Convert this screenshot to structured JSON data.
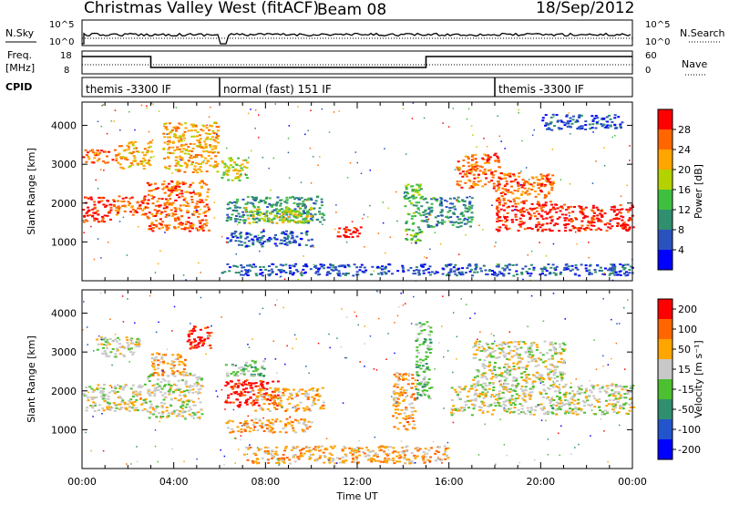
{
  "header": {
    "title": "Christmas Valley West (fitACF)",
    "beam": "Beam 08",
    "date": "18/Sep/2012"
  },
  "top_panels": {
    "nsky_label": "N.Sky",
    "nsky_ticks": [
      "10^5",
      "10^0"
    ],
    "nsearch_label": "N.Search",
    "nsearch_ticks": [
      "10^5",
      "10^0"
    ],
    "freq_label_1": "Freq.",
    "freq_label_2": "[MHz]",
    "freq_ticks": [
      "18",
      "8"
    ],
    "nave_label": "Nave",
    "nave_ticks": [
      "60",
      "0"
    ],
    "cpid_label": "CPID",
    "modes": [
      {
        "label": "themis -3300 IF",
        "start_h": 0,
        "end_h": 6
      },
      {
        "label": "normal (fast) 151 IF",
        "start_h": 6,
        "end_h": 18
      },
      {
        "label": "themis -3300 IF",
        "start_h": 18,
        "end_h": 24
      }
    ]
  },
  "x_axis": {
    "label": "Time UT",
    "ticks": [
      "00:00",
      "04:00",
      "08:00",
      "12:00",
      "16:00",
      "20:00",
      "00:00"
    ]
  },
  "power_panel": {
    "ylabel": "Slant Range [km]",
    "yticks": [
      "1000",
      "2000",
      "3000",
      "4000"
    ],
    "colorbar_label": "Power [dB]",
    "colorbar_ticks": [
      "4",
      "8",
      "12",
      "16",
      "20",
      "24",
      "28"
    ],
    "colors": [
      "#0000ff",
      "#2a52be",
      "#2f8f6f",
      "#3fbf3f",
      "#b4d200",
      "#ffa500",
      "#ff6600",
      "#ff0000"
    ]
  },
  "velocity_panel": {
    "ylabel": "Slant Range [km]",
    "yticks": [
      "1000",
      "2000",
      "3000",
      "4000"
    ],
    "colorbar_label": "Velocity [m s⁻¹]",
    "colorbar_ticks": [
      "200",
      "100",
      "50",
      "15",
      "-15",
      "-50",
      "-100",
      "-200"
    ],
    "colors": [
      "#0000ff",
      "#2255cc",
      "#2f8f6f",
      "#4cc030",
      "#c8c8c8",
      "#ffa500",
      "#ff6600",
      "#ff0000"
    ]
  },
  "chart_data": {
    "type": "heatmap",
    "x_range_hours": [
      0,
      24
    ],
    "y_range_km": [
      0,
      4600
    ],
    "power_bands": [
      {
        "t0": 0.0,
        "t1": 1.2,
        "r0": 1500,
        "r1": 2200,
        "level": 7
      },
      {
        "t0": 0.0,
        "t1": 1.5,
        "r0": 3050,
        "r1": 3400,
        "level": 6
      },
      {
        "t0": 1.2,
        "t1": 2.8,
        "r0": 1700,
        "r1": 2200,
        "level": 6
      },
      {
        "t0": 1.5,
        "t1": 3.0,
        "r0": 2900,
        "r1": 3600,
        "level": 5
      },
      {
        "t0": 2.8,
        "t1": 5.5,
        "r0": 1300,
        "r1": 2600,
        "level": 6
      },
      {
        "t0": 3.5,
        "t1": 5.9,
        "r0": 2800,
        "r1": 4100,
        "level": 5
      },
      {
        "t0": 6.0,
        "t1": 7.2,
        "r0": 2600,
        "r1": 3200,
        "level": 4
      },
      {
        "t0": 6.2,
        "t1": 10.5,
        "r0": 1500,
        "r1": 2200,
        "level": 2
      },
      {
        "t0": 7.0,
        "t1": 10.0,
        "r0": 1500,
        "r1": 1900,
        "level": 4
      },
      {
        "t0": 6.2,
        "t1": 10.0,
        "r0": 900,
        "r1": 1300,
        "level": 1
      },
      {
        "t0": 11.0,
        "t1": 12.2,
        "r0": 1100,
        "r1": 1400,
        "level": 7
      },
      {
        "t0": 14.0,
        "t1": 14.8,
        "r0": 1000,
        "r1": 2500,
        "level": 3
      },
      {
        "t0": 14.8,
        "t1": 17.0,
        "r0": 1400,
        "r1": 2200,
        "level": 2
      },
      {
        "t0": 16.3,
        "t1": 18.2,
        "r0": 2400,
        "r1": 3300,
        "level": 6
      },
      {
        "t0": 18.0,
        "t1": 24.0,
        "r0": 1300,
        "r1": 2000,
        "level": 7
      },
      {
        "t0": 18.0,
        "t1": 20.5,
        "r0": 2000,
        "r1": 2800,
        "level": 6
      },
      {
        "t0": 20.0,
        "t1": 23.5,
        "r0": 3900,
        "r1": 4300,
        "level": 1
      },
      {
        "t0": 6.0,
        "t1": 24.0,
        "r0": 150,
        "r1": 450,
        "level": 1
      }
    ],
    "velocity_bands": [
      {
        "t0": 0.0,
        "t1": 2.8,
        "r0": 1500,
        "r1": 2200,
        "level": 4
      },
      {
        "t0": 0.5,
        "t1": 2.5,
        "r0": 2900,
        "r1": 3400,
        "level": 4
      },
      {
        "t0": 2.8,
        "t1": 5.2,
        "r0": 1300,
        "r1": 2500,
        "level": 4
      },
      {
        "t0": 3.0,
        "t1": 4.5,
        "r0": 2400,
        "r1": 3000,
        "level": 5
      },
      {
        "t0": 4.5,
        "t1": 5.6,
        "r0": 3100,
        "r1": 3700,
        "level": 7
      },
      {
        "t0": 6.2,
        "t1": 8.5,
        "r0": 1600,
        "r1": 2300,
        "level": 7
      },
      {
        "t0": 7.5,
        "t1": 10.5,
        "r0": 1500,
        "r1": 2100,
        "level": 5
      },
      {
        "t0": 6.2,
        "t1": 8.0,
        "r0": 2400,
        "r1": 2800,
        "level": 3
      },
      {
        "t0": 6.2,
        "t1": 10.0,
        "r0": 950,
        "r1": 1300,
        "level": 5
      },
      {
        "t0": 13.5,
        "t1": 14.5,
        "r0": 1000,
        "r1": 2500,
        "level": 5
      },
      {
        "t0": 14.5,
        "t1": 15.2,
        "r0": 1800,
        "r1": 3800,
        "level": 3
      },
      {
        "t0": 16.0,
        "t1": 24.0,
        "r0": 1400,
        "r1": 2200,
        "level": 4
      },
      {
        "t0": 17.0,
        "t1": 21.0,
        "r0": 2200,
        "r1": 3300,
        "level": 4
      },
      {
        "t0": 7.0,
        "t1": 16.0,
        "r0": 150,
        "r1": 600,
        "level": 5
      }
    ],
    "frequency_steps": [
      {
        "t0": 0,
        "t1": 3,
        "level": "high"
      },
      {
        "t0": 3,
        "t1": 15,
        "level": "low"
      },
      {
        "t0": 15,
        "t1": 24,
        "level": "high"
      }
    ]
  }
}
